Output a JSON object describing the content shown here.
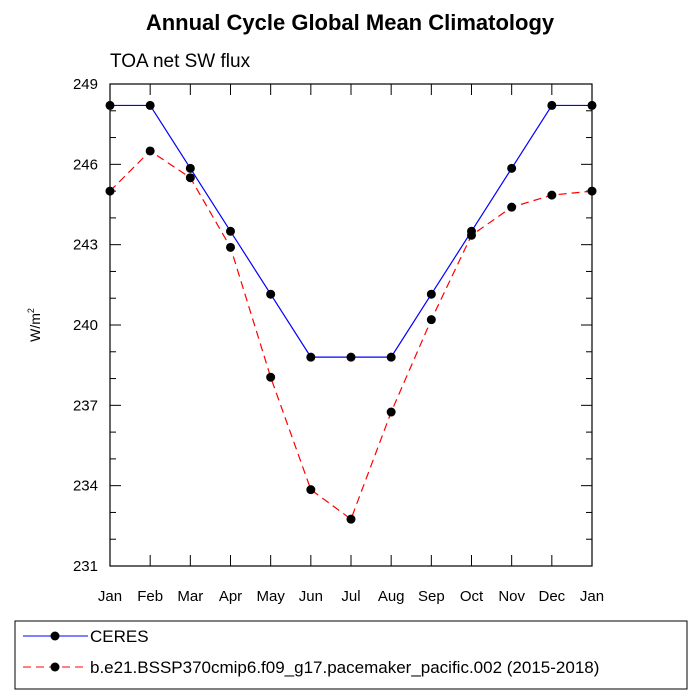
{
  "chart_data": {
    "type": "line",
    "title": "Annual Cycle Global Mean Climatology",
    "subtitle": "TOA net SW flux",
    "ylabel": "W/m",
    "ylabel_sup": "2",
    "xlabel": "",
    "ylim": [
      231,
      249
    ],
    "yticks": [
      231,
      234,
      237,
      240,
      243,
      246,
      249
    ],
    "categories": [
      "Jan",
      "Feb",
      "Mar",
      "Apr",
      "May",
      "Jun",
      "Jul",
      "Aug",
      "Sep",
      "Oct",
      "Nov",
      "Dec",
      "Jan"
    ],
    "series": [
      {
        "name": "CERES",
        "color": "#0000ff",
        "dash": "solid",
        "values": [
          248.2,
          248.2,
          245.85,
          243.5,
          241.15,
          238.8,
          238.8,
          238.8,
          241.15,
          243.5,
          245.85,
          248.2,
          248.2
        ]
      },
      {
        "name": "b.e21.BSSP370cmip6.f09_g17.pacemaker_pacific.002 (2015-2018)",
        "color": "#ff0000",
        "dash": "dashed",
        "values": [
          245.0,
          246.5,
          245.5,
          242.9,
          238.05,
          233.85,
          232.75,
          236.75,
          240.2,
          243.35,
          244.4,
          244.85,
          245.0
        ]
      }
    ]
  }
}
